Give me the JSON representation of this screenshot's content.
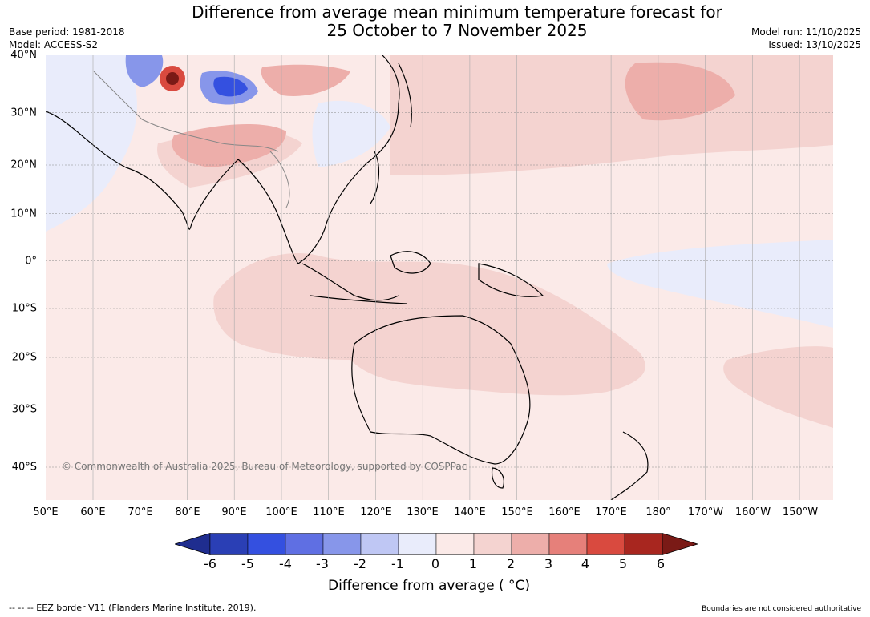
{
  "title_line1": "Difference from average mean minimum temperature forecast for",
  "title_line2": "25 October to 7 November 2025",
  "base_period": "Base period: 1981-2018",
  "model": "Model: ACCESS-S2",
  "model_run": "Model run: 11/10/2025",
  "issued": "Issued: 13/10/2025",
  "copyright": "© Commonwealth of Australia 2025, Bureau of Meteorology, supported by COSPPac",
  "lon_labels": [
    "50°E",
    "60°E",
    "70°E",
    "80°E",
    "90°E",
    "100°E",
    "110°E",
    "120°E",
    "130°E",
    "140°E",
    "150°E",
    "160°E",
    "170°E",
    "180°",
    "170°W",
    "160°W",
    "150°W"
  ],
  "lat_labels": [
    "40°N",
    "30°N",
    "20°N",
    "10°N",
    "0°",
    "10°S",
    "20°S",
    "30°S",
    "40°S"
  ],
  "colorbar": {
    "ticks": [
      "-6",
      "-5",
      "-4",
      "-3",
      "-2",
      "-1",
      "0",
      "1",
      "2",
      "3",
      "4",
      "5",
      "6"
    ],
    "colors": [
      "#1f2d8f",
      "#2a3fb5",
      "#3450e0",
      "#5f6fe3",
      "#8796ea",
      "#bfc7f4",
      "#e9ecfb",
      "#fbeae8",
      "#f4d3d0",
      "#edaeaa",
      "#e6807a",
      "#d94a3f",
      "#a8261f",
      "#7a1a16"
    ],
    "label": "Difference from average ( °C)"
  },
  "footer_left": "--  --  -- EEZ border V11 (Flanders Marine Institute, 2019).",
  "footer_right": "Boundaries are not considered authoritative"
}
